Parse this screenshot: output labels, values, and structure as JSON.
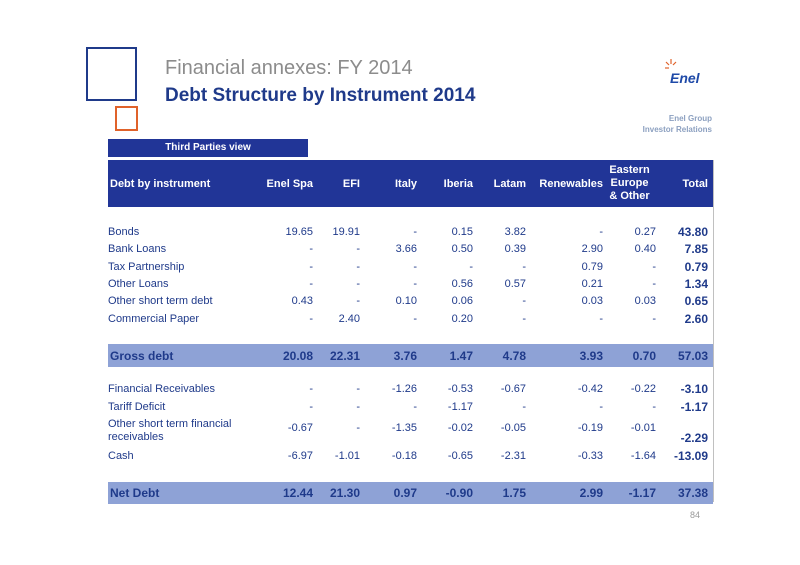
{
  "header": {
    "title": "Financial annexes: FY 2014",
    "subtitle": "Debt Structure by Instrument 2014",
    "logo_text": "Enel",
    "group": "Enel Group",
    "ir": "Investor Relations"
  },
  "view_label": "Third Parties view",
  "columns": {
    "c0": "Debt by instrument",
    "c1": "Enel Spa",
    "c2": "EFI",
    "c3": "Italy",
    "c4": "Iberia",
    "c5": "Latam",
    "c6": "Renewables",
    "c7a": "Eastern",
    "c7b": "Europe",
    "c7c": "& Other",
    "c8": "Total"
  },
  "rows": {
    "bonds": {
      "label": "Bonds",
      "v": [
        "19.65",
        "19.91",
        "-",
        "0.15",
        "3.82",
        "-",
        "0.27"
      ],
      "total": "43.80"
    },
    "bank": {
      "label": "Bank Loans",
      "v": [
        "-",
        "-",
        "3.66",
        "0.50",
        "0.39",
        "2.90",
        "0.40"
      ],
      "total": "7.85"
    },
    "tax": {
      "label": "Tax Partnership",
      "v": [
        "-",
        "-",
        "-",
        "-",
        "-",
        "0.79",
        "-"
      ],
      "total": "0.79"
    },
    "other": {
      "label": "Other Loans",
      "v": [
        "-",
        "-",
        "-",
        "0.56",
        "0.57",
        "0.21",
        "-"
      ],
      "total": "1.34"
    },
    "ostd": {
      "label": "Other short term debt",
      "v": [
        "0.43",
        "-",
        "0.10",
        "0.06",
        "-",
        "0.03",
        "0.03"
      ],
      "total": "0.65"
    },
    "cp": {
      "label": "Commercial Paper",
      "v": [
        "-",
        "2.40",
        "-",
        "0.20",
        "-",
        "-",
        "-"
      ],
      "total": "2.60"
    },
    "gross": {
      "label": "Gross debt",
      "v": [
        "20.08",
        "22.31",
        "3.76",
        "1.47",
        "4.78",
        "3.93",
        "0.70"
      ],
      "total": "57.03"
    },
    "finrec": {
      "label": "Financial Receivables",
      "v": [
        "-",
        "-",
        "-1.26",
        "-0.53",
        "-0.67",
        "-0.42",
        "-0.22"
      ],
      "total": "-3.10"
    },
    "tariff": {
      "label": "Tariff Deficit",
      "v": [
        "-",
        "-",
        "-",
        "-1.17",
        "-",
        "-",
        "-"
      ],
      "total": "-1.17"
    },
    "ostfr": {
      "label": "Other short term financial receivables",
      "v": [
        "-0.67",
        "-",
        "-1.35",
        "-0.02",
        "-0.05",
        "-0.19",
        "-0.01"
      ],
      "total": "-2.29"
    },
    "cash": {
      "label": "Cash",
      "v": [
        "-6.97",
        "-1.01",
        "-0.18",
        "-0.65",
        "-2.31",
        "-0.33",
        "-1.64"
      ],
      "total": "-13.09"
    },
    "net": {
      "label": "Net Debt",
      "v": [
        "12.44",
        "21.30",
        "0.97",
        "-0.90",
        "1.75",
        "2.99",
        "-1.17"
      ],
      "total": "37.38"
    }
  },
  "page_number": "84",
  "colors": {
    "navy": "#213597",
    "band": "#8ea2d6",
    "orange": "#e0622a"
  }
}
